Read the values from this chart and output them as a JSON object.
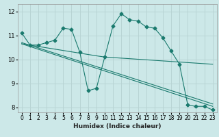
{
  "title": "",
  "xlabel": "Humidex (Indice chaleur)",
  "bg_color": "#cce8e8",
  "grid_color": "#b8d4d4",
  "line_color": "#1a7a6e",
  "xlim": [
    -0.5,
    23.5
  ],
  "ylim": [
    7.8,
    12.3
  ],
  "yticks": [
    8,
    9,
    10,
    11,
    12
  ],
  "xticks": [
    0,
    1,
    2,
    3,
    4,
    5,
    6,
    7,
    8,
    9,
    10,
    11,
    12,
    13,
    14,
    15,
    16,
    17,
    18,
    19,
    20,
    21,
    22,
    23
  ],
  "series_main": {
    "x": [
      0,
      1,
      2,
      3,
      4,
      5,
      6,
      7,
      8,
      9,
      10,
      11,
      12,
      13,
      14,
      15,
      16,
      17,
      18,
      19,
      20,
      21,
      22,
      23
    ],
    "y": [
      11.1,
      10.6,
      10.6,
      10.7,
      10.8,
      11.3,
      11.25,
      10.3,
      8.7,
      8.8,
      10.1,
      11.4,
      11.9,
      11.65,
      11.6,
      11.35,
      11.3,
      10.9,
      10.35,
      9.8,
      8.1,
      8.05,
      8.05,
      7.9
    ]
  },
  "series_lines": [
    {
      "x": [
        0,
        23
      ],
      "y": [
        10.65,
        8.05
      ]
    },
    {
      "x": [
        0,
        23
      ],
      "y": [
        10.7,
        8.15
      ]
    },
    {
      "x": [
        0,
        9,
        10,
        23
      ],
      "y": [
        10.65,
        10.15,
        10.1,
        9.8
      ]
    }
  ]
}
